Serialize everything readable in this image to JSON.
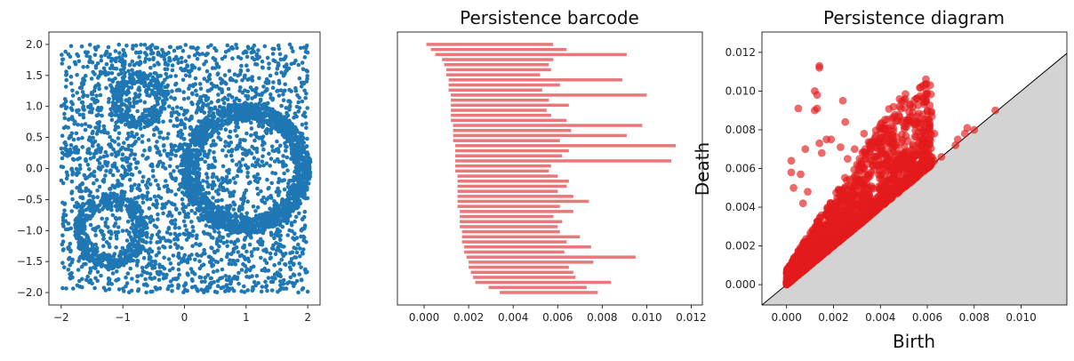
{
  "colors": {
    "scatter_point": "#1f77b4",
    "bar": "#e8787a",
    "diagram_point": "#e31a1c",
    "below_diagonal": "#d3d3d3",
    "diagonal": "#000000"
  },
  "chart_data": [
    {
      "type": "scatter",
      "title": "",
      "xlabel": "",
      "ylabel": "",
      "xlim": [
        -2.2,
        2.2
      ],
      "ylim": [
        -2.2,
        2.2
      ],
      "x_ticks": [
        -2,
        -1,
        0,
        1,
        2
      ],
      "x_tick_labels": [
        "−2",
        "−1",
        "0",
        "1",
        "2"
      ],
      "y_ticks": [
        2.0,
        1.5,
        1.0,
        0.5,
        0.0,
        -0.5,
        -1.0,
        -1.5,
        -2.0
      ],
      "y_tick_labels": [
        "2.0",
        "1.5",
        "1.0",
        "0.5",
        "0.0",
        "−0.5",
        "−1.0",
        "−1.5",
        "−2.0"
      ],
      "uniform_background": {
        "x_range": [
          -2,
          2
        ],
        "y_range": [
          -2,
          2
        ],
        "count": 2600
      },
      "annuli": [
        {
          "center": [
            -0.75,
            1.1
          ],
          "inner_radius": 0.27,
          "outer_radius": 0.45,
          "count": 260
        },
        {
          "center": [
            1.0,
            0.0
          ],
          "inner_radius": 0.78,
          "outer_radius": 1.05,
          "count": 1500
        },
        {
          "center": [
            -1.2,
            -1.0
          ],
          "inner_radius": 0.38,
          "outer_radius": 0.6,
          "count": 450
        }
      ],
      "grid": false,
      "legend": "none"
    },
    {
      "type": "bar",
      "orientation": "horizontal",
      "title": "Persistence barcode",
      "xlabel": "",
      "ylabel": "",
      "xlim": [
        -0.0012,
        0.0125
      ],
      "x_ticks": [
        0.0,
        0.002,
        0.004,
        0.006,
        0.008,
        0.01,
        0.012
      ],
      "x_tick_labels": [
        "0.000",
        "0.002",
        "0.004",
        "0.006",
        "0.008",
        "0.010",
        "0.012"
      ],
      "bars": [
        [
          0.0001,
          0.0058
        ],
        [
          0.0003,
          0.0064
        ],
        [
          0.0005,
          0.0091
        ],
        [
          0.0008,
          0.0058
        ],
        [
          0.0009,
          0.0056
        ],
        [
          0.001,
          0.0057
        ],
        [
          0.001,
          0.0052
        ],
        [
          0.0011,
          0.0089
        ],
        [
          0.0011,
          0.0061
        ],
        [
          0.0011,
          0.0053
        ],
        [
          0.0012,
          0.01
        ],
        [
          0.0012,
          0.0056
        ],
        [
          0.0012,
          0.0065
        ],
        [
          0.0012,
          0.0055
        ],
        [
          0.0012,
          0.0057
        ],
        [
          0.0012,
          0.0064
        ],
        [
          0.0013,
          0.0098
        ],
        [
          0.0013,
          0.0066
        ],
        [
          0.0013,
          0.0091
        ],
        [
          0.0013,
          0.0061
        ],
        [
          0.0014,
          0.0113
        ],
        [
          0.0014,
          0.0065
        ],
        [
          0.0014,
          0.0062
        ],
        [
          0.0014,
          0.0111
        ],
        [
          0.0014,
          0.0057
        ],
        [
          0.0014,
          0.0056
        ],
        [
          0.0015,
          0.006
        ],
        [
          0.0015,
          0.0065
        ],
        [
          0.0015,
          0.0064
        ],
        [
          0.0015,
          0.006
        ],
        [
          0.0015,
          0.0067
        ],
        [
          0.0015,
          0.0074
        ],
        [
          0.0015,
          0.0061
        ],
        [
          0.0016,
          0.0067
        ],
        [
          0.0016,
          0.0058
        ],
        [
          0.0016,
          0.0062
        ],
        [
          0.0016,
          0.006
        ],
        [
          0.0017,
          0.0061
        ],
        [
          0.0017,
          0.007
        ],
        [
          0.0017,
          0.0064
        ],
        [
          0.0018,
          0.0075
        ],
        [
          0.0018,
          0.0063
        ],
        [
          0.0019,
          0.0095
        ],
        [
          0.002,
          0.0076
        ],
        [
          0.002,
          0.0065
        ],
        [
          0.0021,
          0.0067
        ],
        [
          0.0022,
          0.0068
        ],
        [
          0.0023,
          0.0084
        ],
        [
          0.0029,
          0.0073
        ],
        [
          0.0034,
          0.0078
        ]
      ],
      "grid": false,
      "legend": "none"
    },
    {
      "type": "scatter",
      "title": "Persistence diagram",
      "xlabel": "Birth",
      "ylabel": "Death",
      "xlim": [
        -0.00105,
        0.01195
      ],
      "ylim": [
        -0.00105,
        0.01305
      ],
      "x_ticks": [
        0.0,
        0.002,
        0.004,
        0.006,
        0.008,
        0.01
      ],
      "x_tick_labels": [
        "0.000",
        "0.002",
        "0.004",
        "0.006",
        "0.008",
        "0.010"
      ],
      "y_ticks": [
        0.0,
        0.002,
        0.004,
        0.006,
        0.008,
        0.01,
        0.012
      ],
      "y_tick_labels": [
        "0.000",
        "0.002",
        "0.004",
        "0.006",
        "0.008",
        "0.010",
        "0.012"
      ],
      "points": [
        [
          0.0014,
          0.0113
        ],
        [
          0.0014,
          0.0112
        ],
        [
          0.0012,
          0.01
        ],
        [
          0.0013,
          0.0098
        ],
        [
          0.0013,
          0.0091
        ],
        [
          0.0012,
          0.009
        ],
        [
          0.0005,
          0.0091
        ],
        [
          0.0024,
          0.0095
        ],
        [
          0.0025,
          0.0084
        ],
        [
          0.0019,
          0.0075
        ],
        [
          0.0017,
          0.0075
        ],
        [
          0.0014,
          0.0073
        ],
        [
          0.0008,
          0.007
        ],
        [
          0.0015,
          0.0068
        ],
        [
          0.0023,
          0.0071
        ],
        [
          0.0029,
          0.007
        ],
        [
          0.0033,
          0.0078
        ],
        [
          0.0038,
          0.0077
        ],
        [
          0.0034,
          0.0066
        ],
        [
          0.003,
          0.0062
        ],
        [
          0.0026,
          0.0065
        ],
        [
          0.0036,
          0.0058
        ],
        [
          0.0046,
          0.0058
        ],
        [
          0.0048,
          0.0053
        ],
        [
          0.0049,
          0.006
        ],
        [
          0.0051,
          0.0056
        ],
        [
          0.006,
          0.0063
        ],
        [
          0.0063,
          0.0064
        ],
        [
          0.0058,
          0.0075
        ],
        [
          0.0063,
          0.0078
        ],
        [
          0.0072,
          0.0072
        ],
        [
          0.0073,
          0.0075
        ],
        [
          0.0076,
          0.0078
        ],
        [
          0.008,
          0.008
        ],
        [
          0.0077,
          0.0081
        ],
        [
          0.0089,
          0.009
        ],
        [
          0.0002,
          0.0064
        ],
        [
          0.0002,
          0.0058
        ],
        [
          0.0006,
          0.0057
        ],
        [
          0.0003,
          0.005
        ],
        [
          0.0007,
          0.0042
        ],
        [
          0.0009,
          0.0048
        ],
        [
          0.0042,
          0.0051
        ],
        [
          0.0066,
          0.0066
        ]
      ],
      "dense_cluster": {
        "birth_range": [
          0.0,
          0.0062
        ],
        "count": 1800
      },
      "grid": false,
      "legend": "none"
    }
  ]
}
